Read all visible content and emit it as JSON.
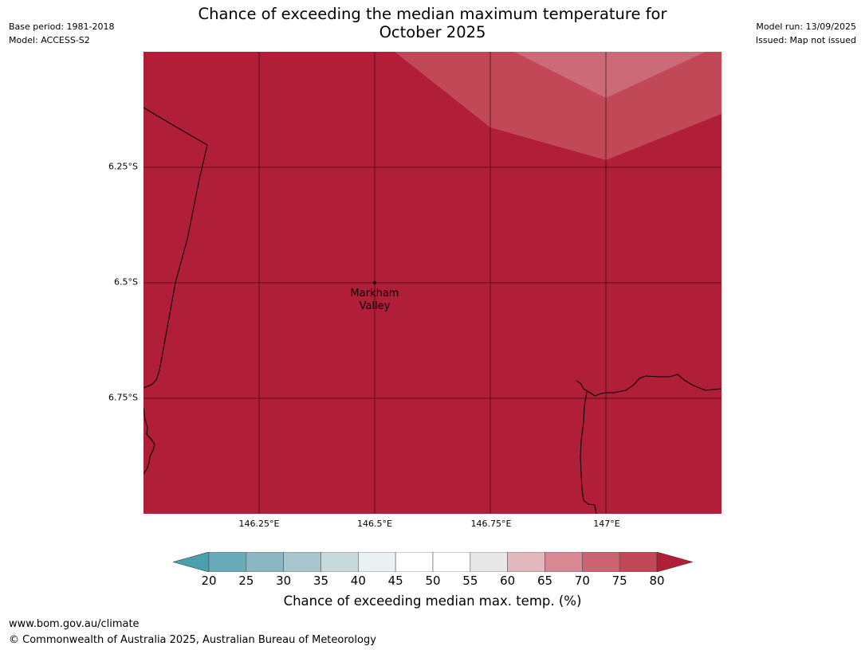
{
  "header": {
    "title_line1": "Chance of exceeding the median maximum temperature for",
    "title_line2": "October 2025",
    "base_period": "Base period: 1981-2018",
    "model": "Model: ACCESS-S2",
    "model_run": "Model run: 13/09/2025",
    "issued": "Issued: Map not issued"
  },
  "map": {
    "background_color": "#b11e38",
    "latitude_labels": [
      "6.25°S",
      "6.5°S",
      "6.75°S"
    ],
    "longitude_labels": [
      "146.25°E",
      "146.5°E",
      "146.75°E",
      "147°E"
    ],
    "place": {
      "name_line1": "Markham",
      "name_line2": "Valley",
      "lon": 146.5,
      "lat": -6.5
    },
    "probability_zones": [
      {
        "range": "75-80",
        "color": "#c14957"
      },
      {
        "range": "70-75",
        "color": "#cb6b77"
      }
    ]
  },
  "colorbar": {
    "label": "Chance of exceeding median max. temp. (%)",
    "ticks": [
      "20",
      "25",
      "30",
      "35",
      "40",
      "45",
      "50",
      "55",
      "60",
      "65",
      "70",
      "75",
      "80"
    ],
    "under_color": "#4ba0b0",
    "over_color": "#b11e38",
    "bin_colors": [
      "#6aabbb",
      "#8cb6c4",
      "#a9c6cc",
      "#c9dadd",
      "#e9f1f3",
      "#ffffff",
      "#ffffff",
      "#e8e8e8",
      "#e2b8bd",
      "#d78892",
      "#ca6470",
      "#c14957"
    ]
  },
  "footer": {
    "url": "www.bom.gov.au/climate",
    "copyright": "© Commonwealth of Australia 2025, Australian Bureau of Meteorology"
  }
}
